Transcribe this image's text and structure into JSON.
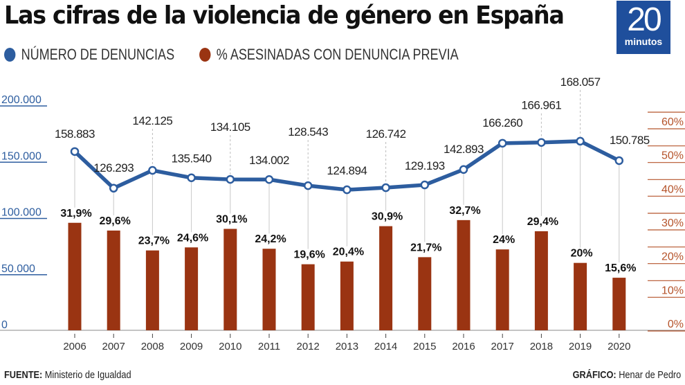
{
  "title": "Las cifras de la violencia de género en España",
  "logo": {
    "number": "20",
    "word": "minutos",
    "color": "#1f4f9c"
  },
  "legend": [
    {
      "label": "NÚMERO DE DENUNCIAS",
      "color": "#2d5d9f"
    },
    {
      "label": "% ASESINADAS CON DENUNCIA PREVIA",
      "color": "#9a3412"
    }
  ],
  "footer": {
    "source_label": "FUENTE:",
    "source_value": "Ministerio de Igualdad",
    "credit_label": "GRÁFICO:",
    "credit_value": "Henar de Pedro"
  },
  "chart_data": {
    "type": "bar+line",
    "title": "Las cifras de la violencia de género en España",
    "categories": [
      "2006",
      "2007",
      "2008",
      "2009",
      "2010",
      "2011",
      "2012",
      "2013",
      "2014",
      "2015",
      "2016",
      "2017",
      "2018",
      "2019",
      "2020"
    ],
    "series": [
      {
        "name": "NÚMERO DE DENUNCIAS",
        "type": "line",
        "axis": "left",
        "color": "#2d5d9f",
        "values": [
          158883,
          126293,
          142125,
          135540,
          134105,
          134002,
          128543,
          124894,
          126742,
          129193,
          142893,
          166260,
          166961,
          168057,
          150785
        ],
        "labels": [
          "158.883",
          "126.293",
          "142.125",
          "135.540",
          "134.105",
          "134.002",
          "128.543",
          "124.894",
          "126.742",
          "129.193",
          "142.893",
          "166.260",
          "166.961",
          "168.057",
          "150.785"
        ]
      },
      {
        "name": "% ASESINADAS CON DENUNCIA PREVIA",
        "type": "bar",
        "axis": "right",
        "color": "#9a3412",
        "values": [
          31.9,
          29.6,
          23.7,
          24.6,
          30.1,
          24.2,
          19.6,
          20.4,
          30.9,
          21.7,
          32.7,
          24,
          29.4,
          20,
          15.6
        ],
        "labels": [
          "31,9%",
          "29,6%",
          "23,7%",
          "24,6%",
          "30,1%",
          "24,2%",
          "19,6%",
          "20,4%",
          "30,9%",
          "21,7%",
          "32,7%",
          "24%",
          "29,4%",
          "20%",
          "15,6%"
        ]
      }
    ],
    "left_axis": {
      "range": [
        0,
        200000
      ],
      "ticks": [
        0,
        50000,
        100000,
        150000,
        200000
      ],
      "tick_labels": [
        "0",
        "50.000",
        "100.000",
        "150.000",
        "200.000"
      ],
      "color": "#2d5d9f"
    },
    "right_axis": {
      "range": [
        0,
        60
      ],
      "ticks": [
        0,
        10,
        20,
        30,
        40,
        50,
        60
      ],
      "tick_labels": [
        "0%",
        "10%",
        "20%",
        "30%",
        "40%",
        "50%",
        "60%"
      ],
      "color": "#b5532a"
    },
    "xlabel": "",
    "ylabel": "",
    "grid": false,
    "legend_position": "top-left"
  }
}
